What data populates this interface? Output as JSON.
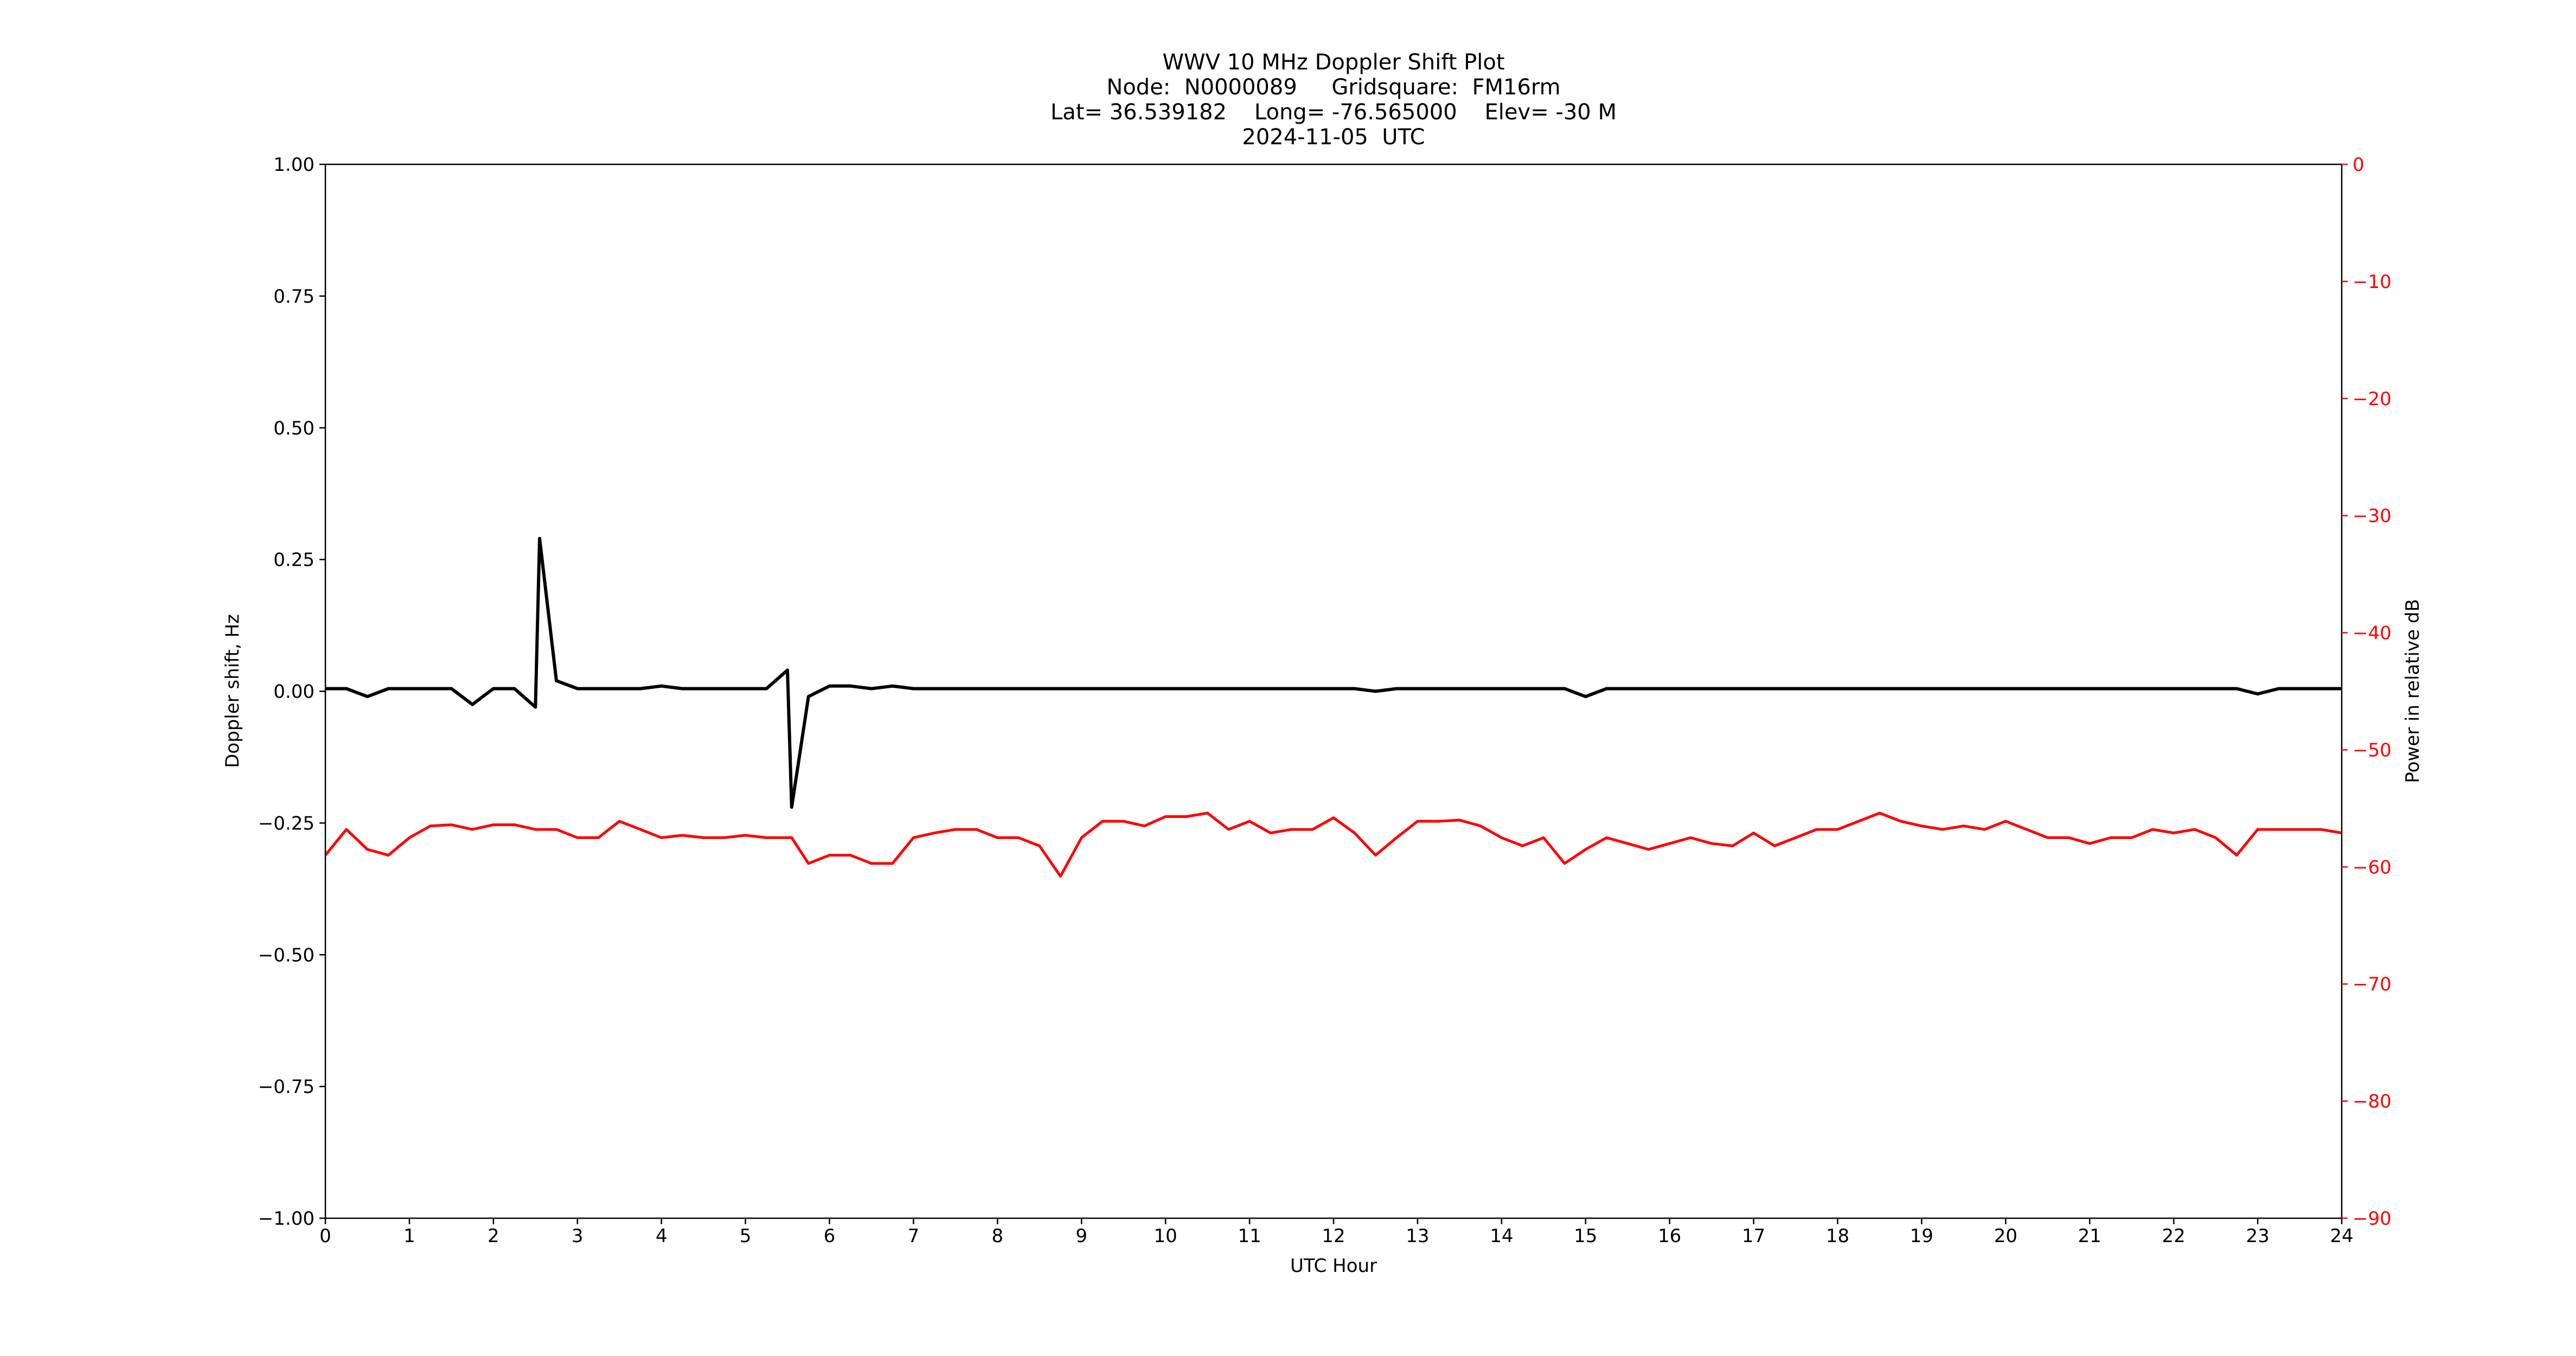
{
  "chart_data": {
    "type": "line",
    "title": [
      "WWV 10 MHz Doppler Shift Plot",
      "Node:  N0000089     Gridsquare:  FM16rm",
      "Lat= 36.539182    Long= -76.565000    Elev= -30 M",
      "2024-11-05  UTC"
    ],
    "xlabel": "UTC Hour",
    "ylabel": "Doppler shift, Hz",
    "y2label": "Power in relative dB",
    "x": [
      0,
      0.25,
      0.5,
      0.75,
      1,
      1.25,
      1.5,
      1.75,
      2,
      2.25,
      2.5,
      2.55,
      2.75,
      3,
      3.25,
      3.5,
      3.75,
      4,
      4.25,
      4.5,
      4.75,
      5,
      5.25,
      5.5,
      5.55,
      5.75,
      6,
      6.25,
      6.5,
      6.75,
      7,
      7.25,
      7.5,
      7.75,
      8,
      8.25,
      8.5,
      8.75,
      9,
      9.25,
      9.5,
      9.75,
      10,
      10.25,
      10.5,
      10.75,
      11,
      11.25,
      11.5,
      11.75,
      12,
      12.25,
      12.5,
      12.75,
      13,
      13.25,
      13.5,
      13.75,
      14,
      14.25,
      14.5,
      14.75,
      15,
      15.25,
      15.5,
      15.75,
      16,
      16.25,
      16.5,
      16.75,
      17,
      17.25,
      17.5,
      17.75,
      18,
      18.25,
      18.5,
      18.75,
      19,
      19.25,
      19.5,
      19.75,
      20,
      20.25,
      20.5,
      20.75,
      21,
      21.25,
      21.5,
      21.75,
      22,
      22.25,
      22.5,
      22.75,
      23,
      23.25,
      23.5,
      23.75,
      24
    ],
    "series": [
      {
        "color": "#000000",
        "axis": "y",
        "values": [
          0.005,
          0.005,
          -0.01,
          0.005,
          0.005,
          0.005,
          0.005,
          -0.025,
          0.005,
          0.005,
          -0.03,
          0.29,
          0.02,
          0.005,
          0.005,
          0.005,
          0.005,
          0.01,
          0.005,
          0.005,
          0.005,
          0.005,
          0.005,
          0.04,
          -0.22,
          -0.01,
          0.01,
          0.01,
          0.005,
          0.01,
          0.005,
          0.005,
          0.005,
          0.005,
          0.005,
          0.005,
          0.005,
          0.005,
          0.005,
          0.005,
          0.005,
          0.005,
          0.005,
          0.005,
          0.005,
          0.005,
          0.005,
          0.005,
          0.005,
          0.005,
          0.005,
          0.005,
          0.0,
          0.005,
          0.005,
          0.005,
          0.005,
          0.005,
          0.005,
          0.005,
          0.005,
          0.005,
          -0.01,
          0.005,
          0.005,
          0.005,
          0.005,
          0.005,
          0.005,
          0.005,
          0.005,
          0.005,
          0.005,
          0.005,
          0.005,
          0.005,
          0.005,
          0.005,
          0.005,
          0.005,
          0.005,
          0.005,
          0.005,
          0.005,
          0.005,
          0.005,
          0.005,
          0.005,
          0.005,
          0.005,
          0.005,
          0.005,
          0.005,
          0.005,
          -0.005,
          0.005,
          0.005,
          0.005,
          0.005
        ]
      },
      {
        "color": "#ff0000",
        "axis": "y2",
        "values": [
          -59.0,
          -56.8,
          -58.5,
          -59.0,
          -57.5,
          -56.5,
          -56.4,
          -56.8,
          -56.4,
          -56.4,
          -56.8,
          -56.8,
          -56.8,
          -57.5,
          -57.5,
          -56.1,
          -56.8,
          -57.5,
          -57.3,
          -57.5,
          -57.5,
          -57.3,
          -57.5,
          -57.5,
          -57.5,
          -59.7,
          -59.0,
          -59.0,
          -59.7,
          -59.7,
          -57.5,
          -57.1,
          -56.8,
          -56.8,
          -57.5,
          -57.5,
          -58.2,
          -60.8,
          -57.5,
          -56.1,
          -56.1,
          -56.5,
          -55.7,
          -55.7,
          -55.4,
          -56.8,
          -56.1,
          -57.1,
          -56.8,
          -56.8,
          -55.8,
          -57.1,
          -59.0,
          -57.5,
          -56.1,
          -56.1,
          -56.0,
          -56.5,
          -57.5,
          -58.2,
          -57.5,
          -59.7,
          -58.5,
          -57.5,
          -58.0,
          -58.5,
          -58.0,
          -57.5,
          -58.0,
          -58.2,
          -57.1,
          -58.2,
          -57.5,
          -56.8,
          -56.8,
          -56.1,
          -55.4,
          -56.1,
          -56.5,
          -56.8,
          -56.5,
          -56.8,
          -56.1,
          -56.8,
          -57.5,
          -57.5,
          -58.0,
          -57.5,
          -57.5,
          -56.8,
          -57.1,
          -56.8,
          -57.5,
          -59.0,
          -56.8,
          -56.8,
          -56.8,
          -56.8,
          -57.1
        ]
      }
    ],
    "xlim": [
      0,
      24
    ],
    "xticks": [
      0,
      1,
      2,
      3,
      4,
      5,
      6,
      7,
      8,
      9,
      10,
      11,
      12,
      13,
      14,
      15,
      16,
      17,
      18,
      19,
      20,
      21,
      22,
      23,
      24
    ],
    "ylim": [
      -1,
      1
    ],
    "yticks": [
      {
        "value": -1,
        "label": "−1.00"
      },
      {
        "value": -0.75,
        "label": "−0.75"
      },
      {
        "value": -0.5,
        "label": "−0.50"
      },
      {
        "value": -0.25,
        "label": "−0.25"
      },
      {
        "value": 0,
        "label": "0.00"
      },
      {
        "value": 0.25,
        "label": "0.25"
      },
      {
        "value": 0.5,
        "label": "0.50"
      },
      {
        "value": 0.75,
        "label": "0.75"
      },
      {
        "value": 1,
        "label": "1.00"
      }
    ],
    "y2lim": [
      -90,
      0
    ],
    "y2ticks": [
      {
        "value": -90,
        "label": "−90"
      },
      {
        "value": -80,
        "label": "−80"
      },
      {
        "value": -70,
        "label": "−70"
      },
      {
        "value": -60,
        "label": "−60"
      },
      {
        "value": -50,
        "label": "−50"
      },
      {
        "value": -40,
        "label": "−40"
      },
      {
        "value": -30,
        "label": "−30"
      },
      {
        "value": -20,
        "label": "−20"
      },
      {
        "value": -10,
        "label": "−10"
      },
      0
    ],
    "y2color": "#ff0000",
    "grid": false
  }
}
